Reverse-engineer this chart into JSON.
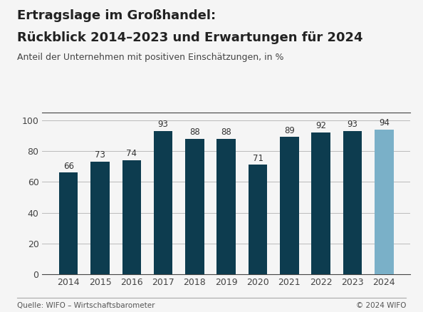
{
  "title_line1": "Ertragslage im Großhandel:",
  "title_line2": "Rückblick 2014–2023 und Erwartungen für 2024",
  "subtitle": "Anteil der Unternehmen mit positiven Einschätzungen, in %",
  "categories": [
    "2014",
    "2015",
    "2016",
    "2017",
    "2018",
    "2019",
    "2020",
    "2021",
    "2022",
    "2023",
    "2024"
  ],
  "values": [
    66,
    73,
    74,
    93,
    88,
    88,
    71,
    89,
    92,
    93,
    94
  ],
  "bar_colors": [
    "#0d3c4f",
    "#0d3c4f",
    "#0d3c4f",
    "#0d3c4f",
    "#0d3c4f",
    "#0d3c4f",
    "#0d3c4f",
    "#0d3c4f",
    "#0d3c4f",
    "#0d3c4f",
    "#7ab0c8"
  ],
  "ylim": [
    0,
    105
  ],
  "yticks": [
    0,
    20,
    40,
    60,
    80,
    100
  ],
  "footer_left": "Quelle: WIFO – Wirtschaftsbarometer",
  "footer_right": "© 2024 WIFO",
  "background_color": "#f5f5f5",
  "grid_color": "#bbbbbb",
  "bar_width": 0.6,
  "title_fontsize": 13,
  "subtitle_fontsize": 9,
  "label_fontsize": 8.5,
  "tick_fontsize": 9,
  "footer_fontsize": 7.5
}
